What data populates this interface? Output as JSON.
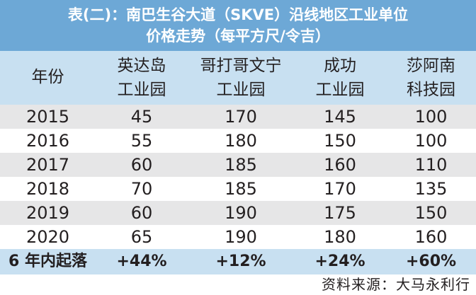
{
  "title_line1": "表(二)：南巴生谷大道（SKVE）沿线地区工业单位",
  "title_line2": "价格走势（每平方尺/令吉）",
  "colors": {
    "title_bg": "#6da8d6",
    "header_bg": "#c8e0f1",
    "shade_row": "#e6e6e7"
  },
  "chart_data": {
    "type": "table",
    "columns": [
      {
        "line1": "年份",
        "line2": ""
      },
      {
        "line1": "英达岛",
        "line2": "工业园"
      },
      {
        "line1": "哥打哥文宁",
        "line2": "工业园"
      },
      {
        "line1": "成功",
        "line2": "工业园"
      },
      {
        "line1": "莎阿南",
        "line2": "科技园"
      }
    ],
    "rows": [
      [
        "2015",
        "45",
        "170",
        "145",
        "100"
      ],
      [
        "2016",
        "55",
        "180",
        "150",
        "100"
      ],
      [
        "2017",
        "60",
        "185",
        "160",
        "110"
      ],
      [
        "2018",
        "70",
        "185",
        "170",
        "135"
      ],
      [
        "2019",
        "60",
        "190",
        "175",
        "150"
      ],
      [
        "2020",
        "65",
        "190",
        "180",
        "160"
      ]
    ],
    "change_row": [
      "6 年内起落",
      "+44%",
      "+12%",
      "+24%",
      "+60%"
    ]
  },
  "source": "资料来源：大马永利行"
}
